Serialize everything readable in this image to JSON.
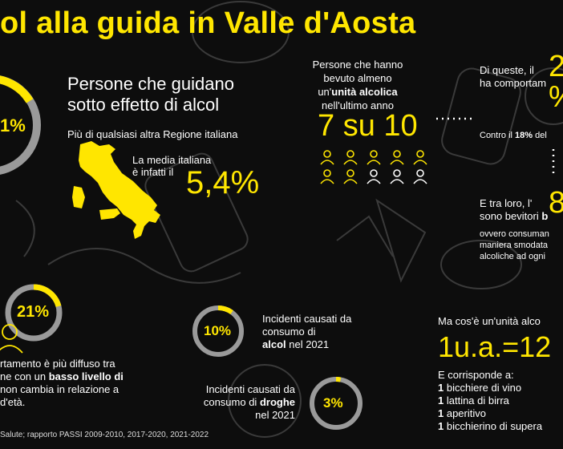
{
  "colors": {
    "accent": "#ffe600",
    "ring_track": "#9a9a9a",
    "background": "#0d0d0d",
    "text": "#ffffff"
  },
  "title": "ol alla guida in Valle d'Aosta",
  "stat_drivers": {
    "ring_label": "1%",
    "heading_line1": "Persone che guidano",
    "heading_line2": "sotto effetto di alcol",
    "subtitle": "Più di qualsiasi altra Regione italiana",
    "avg_line1": "La media italiana",
    "avg_line2": "è infatti il",
    "avg_value": "5,4%"
  },
  "stat_drinkers": {
    "line1": "Persone che hanno",
    "line2": "bevuto almeno",
    "line3_prefix": "un'",
    "line3_bold": "unità alcolica",
    "line4": "nell'ultimo anno",
    "ratio": "7 su 10",
    "people_highlighted": 7,
    "people_total": 10
  },
  "right_column": {
    "line1_prefix": "Di queste, il",
    "line1_big": "2",
    "line2": "ha comportam",
    "line2_big": "%",
    "contro_prefix": "Contro il ",
    "contro_bold": "18%",
    "contro_suffix": " del",
    "tra_loro": "E tra loro, l'",
    "tra_loro_big": "8",
    "bevitori_prefix": "sono bevitori ",
    "bevitori_bold": "b",
    "desc1": "ovvero consuman",
    "desc2": "maniera smodata",
    "desc3": "alcoliche ad ogni"
  },
  "stat_education": {
    "ring_label": "21%",
    "percent": 21,
    "line1": "rtamento è più diffuso tra",
    "line2_prefix": "ne con un ",
    "line2_bold": "basso livello di",
    "line3": "non cambia in relazione a",
    "line4": "d'età."
  },
  "incidents_alcohol": {
    "ring_label": "10%",
    "percent": 10,
    "line1": "Incidenti causati da",
    "line2": "consumo di",
    "line3_bold": "alcol",
    "line3_suffix": " nel 2021"
  },
  "incidents_drugs": {
    "ring_label": "3%",
    "percent": 3,
    "line1": "Incidenti causati da",
    "line2_prefix": "consumo di ",
    "line2_bold": "droghe",
    "line3": "nel 2021"
  },
  "unit_info": {
    "question": "Ma cos'è un'unità alco",
    "formula": "1u.a.=12",
    "corresponds": "E corrisponde a:",
    "items": [
      {
        "qty": "1",
        "text": " bicchiere di vino"
      },
      {
        "qty": "1",
        "text": " lattina di birra"
      },
      {
        "qty": "1",
        "text": " aperitivo"
      },
      {
        "qty": "1",
        "text": " bicchierino di supera"
      }
    ]
  },
  "source": "Salute; rapporto PASSI 2009-2010, 2017-2020, 2021-2022"
}
